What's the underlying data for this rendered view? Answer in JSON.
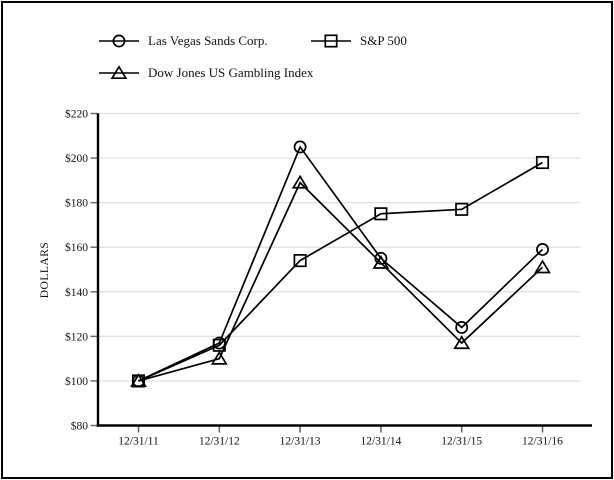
{
  "window": {
    "background_color": "#ffffff",
    "border_color": "#000000"
  },
  "chart_data": {
    "type": "line",
    "title": "",
    "xlabel": "",
    "ylabel": "DOLLARS",
    "categories": [
      "12/31/11",
      "12/31/12",
      "12/31/13",
      "12/31/14",
      "12/31/15",
      "12/31/16"
    ],
    "series": [
      {
        "name": "Las Vegas Sands Corp.",
        "marker": "circle",
        "values": [
          100,
          117,
          205,
          155,
          124,
          159
        ]
      },
      {
        "name": "S&P 500",
        "marker": "square",
        "values": [
          100,
          116,
          154,
          175,
          177,
          198
        ]
      },
      {
        "name": "Dow Jones US Gambling Index",
        "marker": "triangle",
        "values": [
          100,
          110,
          189,
          153,
          117,
          151
        ]
      }
    ],
    "ylim": [
      80,
      220
    ],
    "y_tick_values": [
      220,
      200,
      180,
      160,
      140,
      120,
      100,
      80
    ],
    "y_ticks": [
      "$220",
      "$200",
      "$180",
      "$160",
      "$140",
      "$120",
      "$100",
      "$80"
    ],
    "grid": "horizontal",
    "legend_position": "top",
    "line_color": "#000000",
    "grid_color": "#dedede",
    "tick_color": "#666666"
  }
}
